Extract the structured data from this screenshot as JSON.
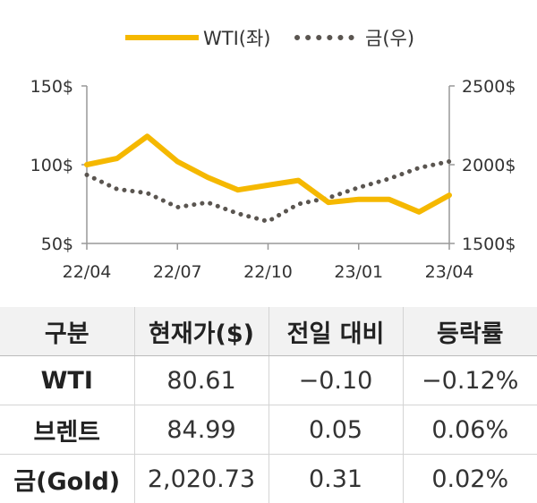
{
  "chart_data": {
    "type": "line",
    "x_ticks": [
      "22/04",
      "22/07",
      "22/10",
      "23/01",
      "23/04"
    ],
    "y_left": {
      "ticks": [
        "150$",
        "100$",
        "50$"
      ],
      "range": [
        50,
        150
      ]
    },
    "y_right": {
      "ticks": [
        "2500$",
        "2000$",
        "1500$"
      ],
      "range": [
        1500,
        2500
      ]
    },
    "grid": false,
    "legend_position": "top-center",
    "series": [
      {
        "name": "WTI(좌)",
        "axis": "left",
        "color": "#f5b800",
        "style": "solid",
        "x": [
          "22/04",
          "22/05",
          "22/06",
          "22/07",
          "22/08",
          "22/09",
          "22/10",
          "22/11",
          "22/12",
          "23/01",
          "23/02",
          "23/03",
          "23/04"
        ],
        "values": [
          100,
          104,
          118,
          102,
          92,
          84,
          87,
          90,
          76,
          78,
          78,
          70,
          80.61
        ]
      },
      {
        "name": "금(우)",
        "axis": "right",
        "color": "#5a5550",
        "style": "dotted",
        "x": [
          "22/04",
          "22/05",
          "22/06",
          "22/07",
          "22/08",
          "22/09",
          "22/10",
          "22/11",
          "22/12",
          "23/01",
          "23/02",
          "23/03",
          "23/04"
        ],
        "values": [
          1935,
          1845,
          1820,
          1730,
          1760,
          1690,
          1640,
          1750,
          1790,
          1855,
          1910,
          1980,
          2020.73
        ]
      }
    ]
  },
  "table": {
    "headers": [
      "구분",
      "현재가($)",
      "전일 대비",
      "등락률"
    ],
    "rows": [
      [
        "WTI",
        "80.61",
        "−0.10",
        "−0.12%"
      ],
      [
        "브렌트",
        "84.99",
        "0.05",
        "0.06%"
      ],
      [
        "금(Gold)",
        "2,020.73",
        "0.31",
        "0.02%"
      ]
    ]
  }
}
